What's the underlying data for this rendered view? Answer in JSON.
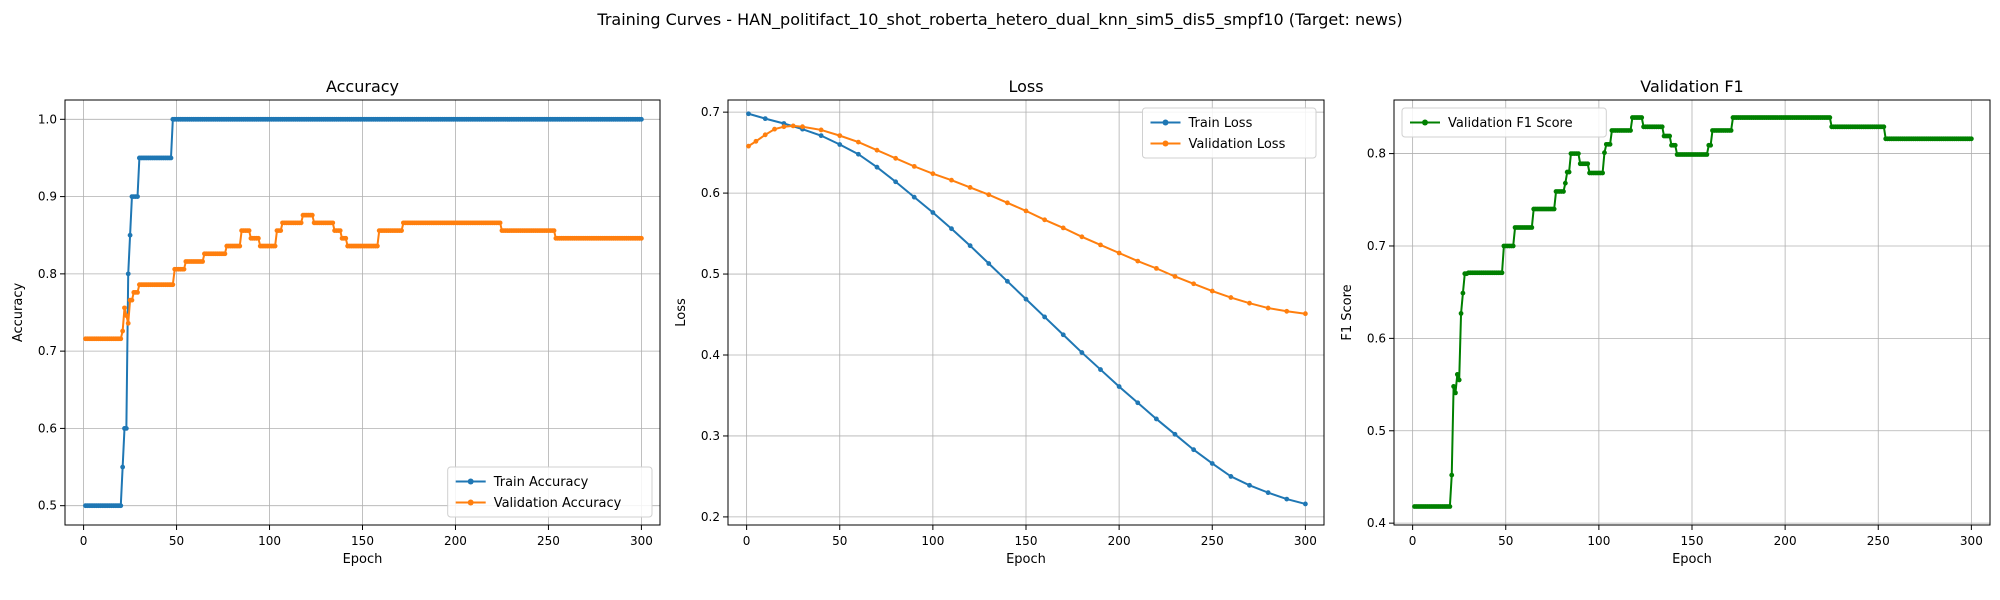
{
  "figure": {
    "title": "Training Curves - HAN_politifact_10_shot_roberta_hetero_dual_knn_sim5_dis5_smpf10 (Target: news)"
  },
  "chart_data": [
    {
      "type": "line",
      "title": "Accuracy",
      "xlabel": "Epoch",
      "ylabel": "Accuracy",
      "xlim": [
        -10,
        310
      ],
      "ylim": [
        0.475,
        1.025
      ],
      "xticks": [
        0,
        50,
        100,
        150,
        200,
        250,
        300
      ],
      "yticks": [
        0.5,
        0.6,
        0.7,
        0.8,
        0.9,
        1.0
      ],
      "ytick_labels": [
        "0.5",
        "0.6",
        "0.7",
        "0.8",
        "0.9",
        "1.0"
      ],
      "grid": true,
      "legend_position": "lower-right",
      "series": [
        {
          "name": "Train Accuracy",
          "color": "#1f77b4",
          "steps": [
            [
              1,
              20,
              0.5
            ],
            [
              21,
              21,
              0.55
            ],
            [
              22,
              23,
              0.6
            ],
            [
              24,
              24,
              0.8
            ],
            [
              25,
              25,
              0.85
            ],
            [
              26,
              29,
              0.9
            ],
            [
              30,
              47,
              0.95
            ],
            [
              48,
              300,
              1.0
            ]
          ]
        },
        {
          "name": "Validation Accuracy",
          "color": "#ff7f0e",
          "steps": [
            [
              1,
              20,
              0.716
            ],
            [
              21,
              21,
              0.726
            ],
            [
              22,
              22,
              0.756
            ],
            [
              23,
              23,
              0.746
            ],
            [
              24,
              24,
              0.736
            ],
            [
              25,
              26,
              0.766
            ],
            [
              27,
              29,
              0.776
            ],
            [
              30,
              48,
              0.786
            ],
            [
              49,
              54,
              0.806
            ],
            [
              55,
              64,
              0.816
            ],
            [
              65,
              76,
              0.826
            ],
            [
              77,
              84,
              0.836
            ],
            [
              85,
              89,
              0.856
            ],
            [
              90,
              94,
              0.846
            ],
            [
              95,
              103,
              0.836
            ],
            [
              104,
              106,
              0.856
            ],
            [
              107,
              117,
              0.866
            ],
            [
              118,
              123,
              0.876
            ],
            [
              124,
              134,
              0.866
            ],
            [
              135,
              138,
              0.856
            ],
            [
              139,
              141,
              0.846
            ],
            [
              142,
              158,
              0.836
            ],
            [
              159,
              171,
              0.856
            ],
            [
              172,
              224,
              0.866
            ],
            [
              225,
              253,
              0.856
            ],
            [
              254,
              300,
              0.846
            ]
          ]
        }
      ]
    },
    {
      "type": "line",
      "title": "Loss",
      "xlabel": "Epoch",
      "ylabel": "Loss",
      "xlim": [
        -10,
        310
      ],
      "ylim": [
        0.19,
        0.715
      ],
      "xticks": [
        0,
        50,
        100,
        150,
        200,
        250,
        300
      ],
      "yticks": [
        0.2,
        0.3,
        0.4,
        0.5,
        0.6,
        0.7
      ],
      "ytick_labels": [
        "0.2",
        "0.3",
        "0.4",
        "0.5",
        "0.6",
        "0.7"
      ],
      "grid": true,
      "legend_position": "upper-right",
      "series": [
        {
          "name": "Train Loss",
          "color": "#1f77b4",
          "points": [
            [
              1,
              0.698
            ],
            [
              10,
              0.692
            ],
            [
              20,
              0.686
            ],
            [
              30,
              0.679
            ],
            [
              40,
              0.671
            ],
            [
              50,
              0.66
            ],
            [
              60,
              0.648
            ],
            [
              70,
              0.632
            ],
            [
              80,
              0.614
            ],
            [
              90,
              0.595
            ],
            [
              100,
              0.576
            ],
            [
              110,
              0.556
            ],
            [
              120,
              0.535
            ],
            [
              130,
              0.513
            ],
            [
              140,
              0.491
            ],
            [
              150,
              0.469
            ],
            [
              160,
              0.447
            ],
            [
              170,
              0.425
            ],
            [
              180,
              0.403
            ],
            [
              190,
              0.382
            ],
            [
              200,
              0.361
            ],
            [
              210,
              0.341
            ],
            [
              220,
              0.321
            ],
            [
              230,
              0.302
            ],
            [
              240,
              0.283
            ],
            [
              250,
              0.266
            ],
            [
              260,
              0.25
            ],
            [
              270,
              0.239
            ],
            [
              280,
              0.23
            ],
            [
              290,
              0.222
            ],
            [
              300,
              0.216
            ]
          ]
        },
        {
          "name": "Validation Loss",
          "color": "#ff7f0e",
          "points": [
            [
              1,
              0.658
            ],
            [
              5,
              0.664
            ],
            [
              10,
              0.672
            ],
            [
              15,
              0.679
            ],
            [
              20,
              0.682
            ],
            [
              25,
              0.683
            ],
            [
              30,
              0.682
            ],
            [
              40,
              0.678
            ],
            [
              50,
              0.671
            ],
            [
              60,
              0.663
            ],
            [
              70,
              0.653
            ],
            [
              80,
              0.643
            ],
            [
              90,
              0.633
            ],
            [
              100,
              0.624
            ],
            [
              110,
              0.616
            ],
            [
              120,
              0.607
            ],
            [
              130,
              0.598
            ],
            [
              140,
              0.588
            ],
            [
              150,
              0.578
            ],
            [
              160,
              0.567
            ],
            [
              170,
              0.557
            ],
            [
              180,
              0.546
            ],
            [
              190,
              0.536
            ],
            [
              200,
              0.526
            ],
            [
              210,
              0.516
            ],
            [
              220,
              0.507
            ],
            [
              230,
              0.497
            ],
            [
              240,
              0.488
            ],
            [
              250,
              0.479
            ],
            [
              260,
              0.471
            ],
            [
              270,
              0.464
            ],
            [
              280,
              0.458
            ],
            [
              290,
              0.454
            ],
            [
              300,
              0.451
            ]
          ]
        }
      ]
    },
    {
      "type": "line",
      "title": "Validation F1",
      "xlabel": "Epoch",
      "ylabel": "F1 Score",
      "xlim": [
        -10,
        310
      ],
      "ylim": [
        0.398,
        0.858
      ],
      "xticks": [
        0,
        50,
        100,
        150,
        200,
        250,
        300
      ],
      "yticks": [
        0.4,
        0.5,
        0.6,
        0.7,
        0.8
      ],
      "ytick_labels": [
        "0.4",
        "0.5",
        "0.6",
        "0.7",
        "0.8"
      ],
      "grid": true,
      "legend_position": "upper-left",
      "series": [
        {
          "name": "Validation F1 Score",
          "color": "#008000",
          "steps": [
            [
              1,
              20,
              0.418
            ],
            [
              21,
              21,
              0.452
            ],
            [
              22,
              22,
              0.548
            ],
            [
              23,
              23,
              0.541
            ],
            [
              24,
              24,
              0.561
            ],
            [
              25,
              25,
              0.555
            ],
            [
              26,
              26,
              0.627
            ],
            [
              27,
              27,
              0.649
            ],
            [
              28,
              29,
              0.67
            ],
            [
              30,
              48,
              0.671
            ],
            [
              49,
              54,
              0.7
            ],
            [
              55,
              64,
              0.72
            ],
            [
              65,
              76,
              0.74
            ],
            [
              77,
              81,
              0.759
            ],
            [
              82,
              82,
              0.768
            ],
            [
              83,
              84,
              0.78
            ],
            [
              85,
              89,
              0.8
            ],
            [
              90,
              94,
              0.789
            ],
            [
              95,
              102,
              0.779
            ],
            [
              103,
              103,
              0.801
            ],
            [
              104,
              106,
              0.81
            ],
            [
              107,
              117,
              0.825
            ],
            [
              118,
              123,
              0.839
            ],
            [
              124,
              134,
              0.829
            ],
            [
              135,
              138,
              0.819
            ],
            [
              139,
              141,
              0.809
            ],
            [
              142,
              158,
              0.799
            ],
            [
              159,
              160,
              0.809
            ],
            [
              161,
              171,
              0.825
            ],
            [
              172,
              224,
              0.839
            ],
            [
              225,
              253,
              0.829
            ],
            [
              254,
              300,
              0.816
            ]
          ]
        }
      ]
    }
  ]
}
